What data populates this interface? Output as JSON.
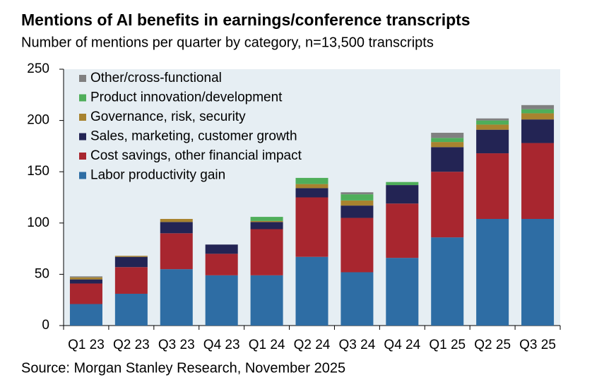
{
  "chart_data": {
    "type": "stacked_bar",
    "title": "Mentions of AI benefits in earnings/conference transcripts",
    "subtitle": "Number of mentions per quarter by category, n=13,500 transcripts",
    "source": "Source: Morgan Stanley Research, November 2025",
    "categories": [
      "Q1 23",
      "Q2 23",
      "Q3 23",
      "Q4 23",
      "Q1 24",
      "Q2 24",
      "Q3 24",
      "Q4 24",
      "Q1 25",
      "Q2 25",
      "Q3 25"
    ],
    "series": [
      {
        "name": "Labor productivity gain",
        "color": "#2e6da4",
        "values": [
          21,
          31,
          55,
          49,
          49,
          67,
          52,
          66,
          86,
          104,
          104
        ]
      },
      {
        "name": "Cost savings, other financial impact",
        "color": "#a8262f",
        "values": [
          20,
          26,
          35,
          21,
          45,
          58,
          53,
          53,
          64,
          64,
          74
        ]
      },
      {
        "name": "Sales, marketing, customer growth",
        "color": "#232454",
        "values": [
          4,
          10,
          11,
          9,
          7,
          9,
          12,
          18,
          24,
          23,
          23
        ]
      },
      {
        "name": "Governance, risk, security",
        "color": "#a8832f",
        "values": [
          2,
          1,
          3,
          0,
          1,
          4,
          5,
          0,
          5,
          5,
          6
        ]
      },
      {
        "name": "Product innovation/development",
        "color": "#4fae5a",
        "values": [
          0,
          0,
          0,
          0,
          4,
          6,
          6,
          3,
          4,
          4,
          4
        ]
      },
      {
        "name": "Other/cross-functional",
        "color": "#808080",
        "values": [
          1,
          0,
          0,
          0,
          0,
          0,
          2,
          0,
          5,
          2,
          4
        ]
      }
    ],
    "ylim": [
      0,
      250
    ],
    "yticks": [
      0,
      50,
      100,
      150,
      200,
      250
    ]
  }
}
